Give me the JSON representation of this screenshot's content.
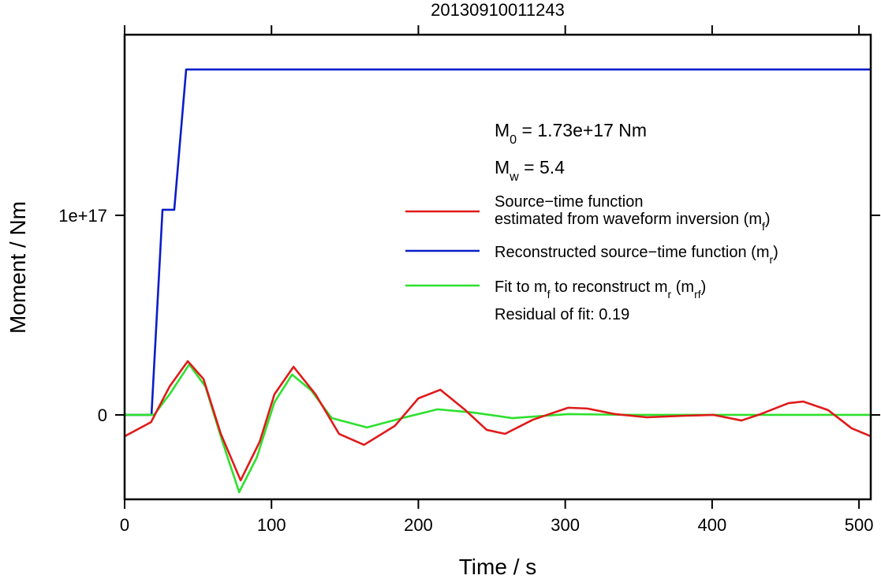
{
  "chart_data": {
    "type": "line",
    "title": "20130910011243",
    "x_label": "Time / s",
    "y_label": "Moment / Nm",
    "xlim": [
      0,
      508
    ],
    "ylim": [
      -4.23e+16,
      1.905e+17
    ],
    "xticks": [
      0,
      100,
      200,
      300,
      400,
      500
    ],
    "yticks": [
      0,
      {
        "value": 1e+17,
        "label": "1e+17"
      }
    ],
    "grid": false,
    "annotations": [
      [
        "M",
        "0",
        " = 1.73e+17 Nm"
      ],
      [
        "M",
        "w",
        " = 5.4"
      ]
    ],
    "footnote": [
      "Residual of fit: 0.19"
    ],
    "series": [
      {
        "name": [
          [
            "Source−time function"
          ],
          [
            "estimated from waveform inversion (m",
            "f",
            ")"
          ]
        ],
        "color": "#e01a1a",
        "x": [
          0,
          18,
          30.6,
          43,
          53.7,
          65.5,
          79,
          92,
          102,
          115,
          130,
          146,
          163,
          184,
          200,
          215,
          232,
          246.5,
          259,
          278,
          302,
          315,
          334,
          355.5,
          382,
          401,
          420,
          433,
          452,
          462,
          479,
          495,
          508
        ],
        "values": [
          -1.07e+16,
          -3600000000000000.0,
          1.42e+16,
          2.69e+16,
          1.8e+16,
          -9500000000000000.0,
          -3.28e+16,
          -1.34e+16,
          1.03e+16,
          2.41e+16,
          1.03e+16,
          -9500000000000000.0,
          -1.5e+16,
          -5500000000000000.0,
          8300000000000000.0,
          1.26e+16,
          2400000000000000.0,
          -7500000000000000.0,
          -9500000000000000.0,
          -2400000000000000.0,
          3600000000000000.0,
          3200000000000000.0,
          400000000000000.0,
          -1200000000000000.0,
          -400000000000000.0,
          0,
          -2800000000000000.0,
          400000000000000.0,
          5900000000000000.0,
          6700000000000000.0,
          2400000000000000.0,
          -6700000000000000.0,
          -1.07e+16
        ]
      },
      {
        "name": [
          [
            "Reconstructed source−time function (m",
            "r",
            ")"
          ]
        ],
        "color": "#0a1ec8",
        "x": [
          0,
          18.3,
          25.8,
          33.8,
          41.9,
          508
        ],
        "values": [
          0,
          0,
          1.028e+17,
          1.028e+17,
          1.731e+17,
          1.731e+17
        ]
      },
      {
        "name": [
          [
            "Fit to m",
            "f",
            " to reconstruct m",
            "r",
            " (m",
            "rf",
            ")"
          ]
        ],
        "color": "#2ee02e",
        "x": [
          0,
          20,
          30.6,
          44,
          55,
          66.6,
          78,
          90,
          102,
          114,
          127,
          141,
          165,
          189,
          213,
          237,
          264,
          302,
          345,
          508
        ],
        "values": [
          0,
          0,
          1.03e+16,
          2.53e+16,
          1.42e+16,
          -1.34e+16,
          -3.87e+16,
          -2.13e+16,
          6300000000000000.0,
          2.02e+16,
          1.23e+16,
          -1600000000000000.0,
          -6300000000000000.0,
          -1600000000000000.0,
          2800000000000000.0,
          1200000000000000.0,
          -1600000000000000.0,
          400000000000000.0,
          0,
          0
        ]
      }
    ]
  }
}
